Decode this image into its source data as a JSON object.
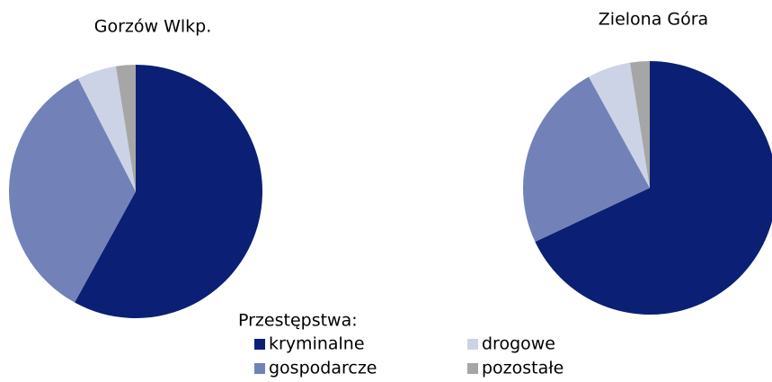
{
  "chart_data": [
    {
      "type": "pie",
      "title": "Gorzów Wlkp.",
      "categories": [
        "kryminalne",
        "gospodarcze",
        "drogowe",
        "pozostałe"
      ],
      "values": [
        58,
        34.5,
        5,
        2.5
      ],
      "colors": [
        "#0b1f74",
        "#7282b8",
        "#cdd3e6",
        "#a6a6a6"
      ]
    },
    {
      "type": "pie",
      "title": "Zielona Góra",
      "categories": [
        "kryminalne",
        "gospodarcze",
        "drogowe",
        "pozostałe"
      ],
      "values": [
        68,
        24,
        5.5,
        2.5
      ],
      "colors": [
        "#0b1f74",
        "#7282b8",
        "#cdd3e6",
        "#a6a6a6"
      ]
    }
  ],
  "legend_title": "Przestępstwa:"
}
